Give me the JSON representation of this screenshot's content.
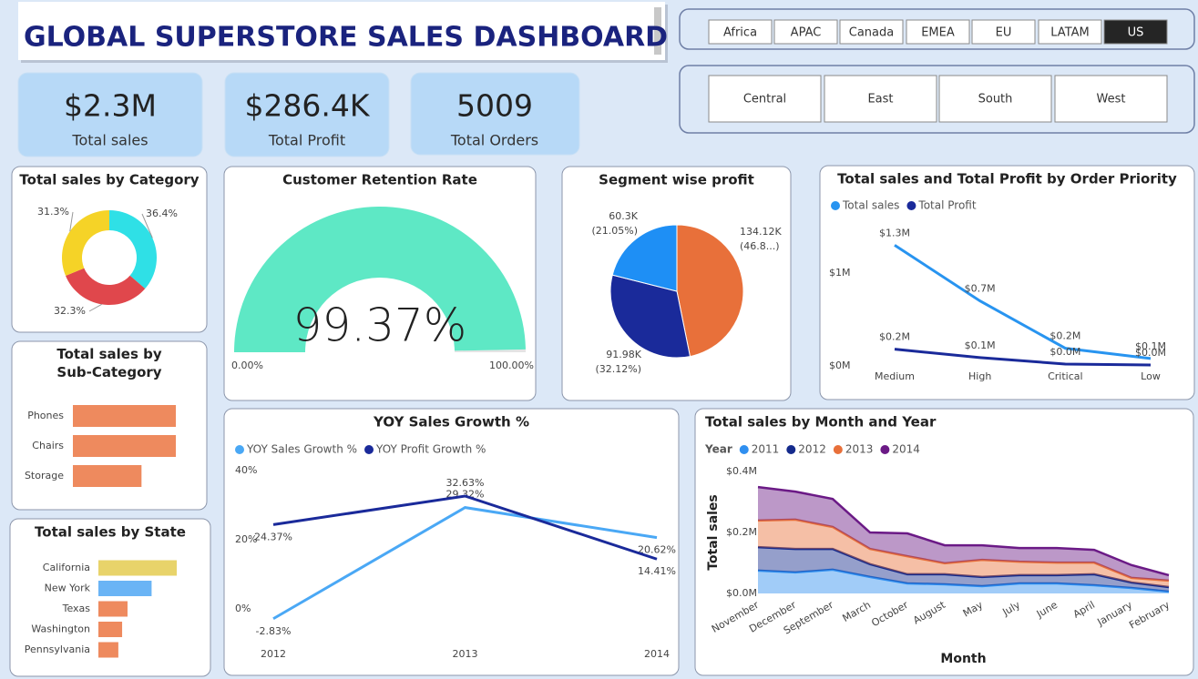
{
  "header": {
    "title": "GLOBAL SUPERSTORE SALES DASHBOARD"
  },
  "slicers": {
    "markets": [
      "Africa",
      "APAC",
      "Canada",
      "EMEA",
      "EU",
      "LATAM",
      "US"
    ],
    "selected_market": 6,
    "regions": [
      "Central",
      "East",
      "South",
      "West"
    ]
  },
  "kpis": [
    {
      "value": "$2.3M",
      "label": "Total sales"
    },
    {
      "value": "$286.4K",
      "label": "Total Profit"
    },
    {
      "value": "5009",
      "label": "Total Orders"
    }
  ],
  "chart_data": [
    {
      "type": "donut",
      "title": "Total sales by Category",
      "values": [
        36.4,
        32.3,
        31.3
      ],
      "value_labels": [
        "36.4%",
        "32.3%",
        "31.3%"
      ],
      "colors": [
        "#2fe0e6",
        "#e0474c",
        "#f5d327"
      ]
    },
    {
      "type": "gauge",
      "title": "Customer Retention Rate",
      "value": 99.37,
      "value_label": "99.37%",
      "min": {
        "value": 0,
        "label": "0.00%"
      },
      "max": {
        "value": 100,
        "label": "100.00%"
      },
      "color": "#5ee8c5"
    },
    {
      "type": "pie",
      "title": "Segment wise profit",
      "values": [
        134.12,
        91.98,
        60.3
      ],
      "value_labels": [
        "134.12K",
        "91.98K",
        "60.3K"
      ],
      "percent_labels": [
        "(46.8...)",
        "(32.12%)",
        "(21.05%)"
      ],
      "colors": [
        "#e8703a",
        "#1a2a9a",
        "#1e8ff5"
      ]
    },
    {
      "type": "line",
      "title": "Total sales and Total Profit by Order Priority",
      "categories": [
        "Medium",
        "High",
        "Critical",
        "Low"
      ],
      "series": [
        {
          "name": "Total sales",
          "color": "#2894f0",
          "values": [
            1.3,
            0.7,
            0.19,
            0.08
          ],
          "value_labels": [
            "$1.3M",
            "$0.7M",
            "$0.2M",
            "$0.1M"
          ]
        },
        {
          "name": "Total Profit",
          "color": "#1a2a9a",
          "values": [
            0.18,
            0.09,
            0.02,
            0.01
          ],
          "value_labels": [
            "$0.2M",
            "$0.1M",
            "$0.0M",
            "$0.0M"
          ]
        }
      ],
      "ylim": [
        0,
        1.5
      ],
      "yticks": [
        {
          "value": 0,
          "label": "$0M"
        },
        {
          "value": 1,
          "label": "$1M"
        }
      ]
    },
    {
      "type": "line",
      "title": "YOY Sales Growth %",
      "categories": [
        "2012",
        "2013",
        "2014"
      ],
      "series": [
        {
          "name": "YOY Sales Growth %",
          "color": "#4aa8f5",
          "values": [
            -2.83,
            29.32,
            20.62
          ],
          "value_labels": [
            "-2.83%",
            "29.32%",
            "20.62%"
          ]
        },
        {
          "name": "YOY Profit Growth %",
          "color": "#1a2a9a",
          "values": [
            24.37,
            32.63,
            14.41
          ],
          "value_labels": [
            "24.37%",
            "32.63%",
            "14.41%"
          ]
        }
      ],
      "ylim": [
        -5,
        40
      ],
      "yticks": [
        {
          "value": 0,
          "label": "0%"
        },
        {
          "value": 20,
          "label": "20%"
        },
        {
          "value": 40,
          "label": "40%"
        }
      ]
    },
    {
      "type": "area",
      "title": "Total sales by Month and Year",
      "stacked": true,
      "x_label": "Month",
      "y_label": "Total sales",
      "legend_title": "Year",
      "categories": [
        "November",
        "December",
        "September",
        "March",
        "October",
        "August",
        "May",
        "July",
        "June",
        "April",
        "January",
        "February"
      ],
      "series": [
        {
          "name": "2011",
          "color": "#2f8ff0",
          "values": [
            0.075,
            0.069,
            0.078,
            0.054,
            0.033,
            0.03,
            0.024,
            0.033,
            0.033,
            0.027,
            0.018,
            0.006
          ]
        },
        {
          "name": "2012",
          "color": "#142a8c",
          "values": [
            0.077,
            0.077,
            0.068,
            0.042,
            0.03,
            0.033,
            0.03,
            0.027,
            0.027,
            0.036,
            0.018,
            0.015
          ]
        },
        {
          "name": "2013",
          "color": "#e8703a",
          "values": [
            0.087,
            0.096,
            0.072,
            0.05,
            0.059,
            0.036,
            0.056,
            0.044,
            0.041,
            0.038,
            0.015,
            0.021
          ]
        },
        {
          "name": "2014",
          "color": "#6b1a86",
          "values": [
            0.11,
            0.092,
            0.092,
            0.054,
            0.075,
            0.059,
            0.048,
            0.045,
            0.048,
            0.042,
            0.042,
            0.018
          ]
        }
      ],
      "ylim": [
        0,
        0.4
      ],
      "yticks": [
        {
          "value": 0,
          "label": "$0.0M"
        },
        {
          "value": 0.2,
          "label": "$0.2M"
        },
        {
          "value": 0.4,
          "label": "$0.4M"
        }
      ]
    },
    {
      "type": "hbar",
      "title": "Total sales by Sub-Category",
      "categories": [
        "Phones",
        "Chairs",
        "Storage"
      ],
      "values": [
        0.33,
        0.33,
        0.22
      ],
      "colors": [
        "#ee8a5e",
        "#ee8a5e",
        "#ee8a5e"
      ]
    },
    {
      "type": "hbar",
      "title": "Total sales by State",
      "categories": [
        "California",
        "New York",
        "Texas",
        "Washington",
        "Pennsylvania"
      ],
      "values": [
        457.69,
        310.88,
        170.19,
        138.64,
        116.51
      ],
      "colors": [
        "#e8d36a",
        "#6ab4f5",
        "#ee8a5e",
        "#ee8a5e",
        "#ee8a5e"
      ]
    }
  ]
}
